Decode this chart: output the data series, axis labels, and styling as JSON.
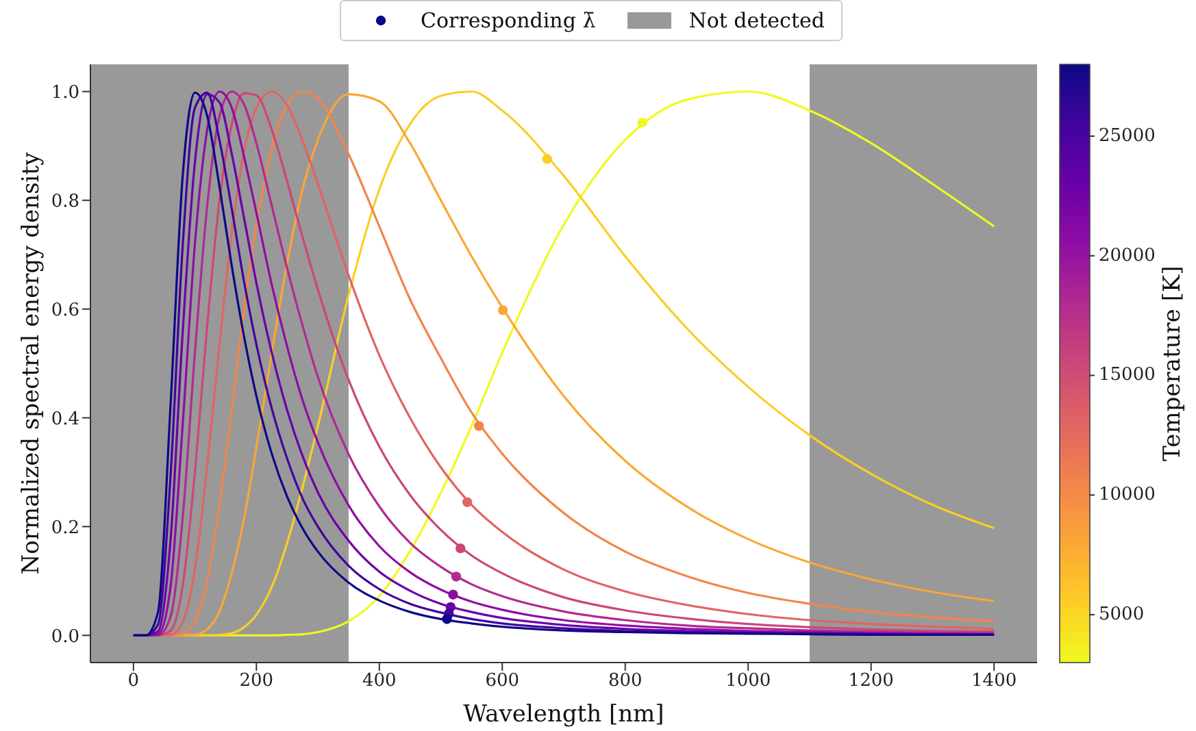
{
  "chart_data": {
    "type": "line",
    "xlabel": "Wavelength [nm]",
    "ylabel": "Normalized spectral energy density",
    "clabel": "Temperature [K]",
    "x": [
      0,
      20,
      40,
      60,
      80,
      100,
      120,
      140,
      160,
      180,
      200,
      225,
      250,
      275,
      300,
      350,
      400,
      450,
      500,
      550,
      600,
      700,
      800,
      900,
      1000,
      1100,
      1200,
      1300,
      1400
    ],
    "xlim": [
      -70,
      1470
    ],
    "xticks": [
      0,
      200,
      400,
      600,
      800,
      1000,
      1200,
      1400
    ],
    "ylim": [
      -0.05,
      1.05
    ],
    "yticks": [
      {
        "value": 0,
        "label": "0.0"
      },
      {
        "value": 0.2,
        "label": "0.2"
      },
      {
        "value": 0.4,
        "label": "0.4"
      },
      {
        "value": 0.6,
        "label": "0.6"
      },
      {
        "value": 0.8,
        "label": "0.8"
      },
      {
        "value": 1,
        "label": "1.0"
      }
    ],
    "clim": [
      3000,
      28000
    ],
    "cticks": [
      5000,
      10000,
      15000,
      20000,
      25000
    ],
    "legend": "top",
    "grid": false,
    "bands": [
      {
        "axis": "x",
        "from": -70,
        "to": 350,
        "label": "Not detected",
        "color": "#808080"
      },
      {
        "axis": "x",
        "from": 1100,
        "to": 1470,
        "color": "#808080"
      }
    ],
    "series": [
      {
        "color": "#f0f921",
        "values": [
          null,
          null,
          null,
          null,
          0,
          0,
          0,
          0,
          0,
          0,
          0,
          0,
          0.001,
          0.002,
          0.006,
          0.026,
          0.072,
          0.155,
          0.262,
          0.385,
          0.52,
          0.755,
          0.911,
          0.985,
          1.0,
          0.965,
          0.905,
          0.83,
          0.752
        ]
      },
      {
        "color": "#fcce25",
        "values": [
          null,
          null,
          0,
          0,
          0,
          0,
          0,
          0.001,
          0.004,
          0.015,
          0.038,
          0.089,
          0.17,
          0.272,
          0.385,
          0.625,
          0.82,
          0.94,
          0.992,
          1.0,
          0.965,
          0.845,
          0.697,
          0.565,
          0.457,
          0.368,
          0.297,
          0.24,
          0.197
        ]
      },
      {
        "color": "#fca636",
        "values": [
          0,
          0,
          0,
          0,
          0,
          0.001,
          0.011,
          0.044,
          0.115,
          0.215,
          0.346,
          0.52,
          0.684,
          0.82,
          0.911,
          0.995,
          0.982,
          0.905,
          0.8,
          0.697,
          0.603,
          0.44,
          0.321,
          0.237,
          0.177,
          0.134,
          0.103,
          0.08,
          0.063
        ]
      },
      {
        "color": "#f2844b",
        "values": [
          0,
          0,
          0,
          0,
          0.003,
          0.026,
          0.1,
          0.24,
          0.415,
          0.6,
          0.755,
          0.895,
          0.975,
          1.0,
          0.987,
          0.885,
          0.752,
          0.618,
          0.51,
          0.41,
          0.334,
          0.225,
          0.154,
          0.109,
          0.078,
          0.058,
          0.043,
          0.033,
          0.026
        ]
      },
      {
        "color": "#e16462",
        "values": [
          0,
          0,
          0,
          0.001,
          0.024,
          0.122,
          0.313,
          0.535,
          0.74,
          0.89,
          0.97,
          1.0,
          0.975,
          0.91,
          0.83,
          0.662,
          0.515,
          0.4,
          0.309,
          0.24,
          0.19,
          0.121,
          0.081,
          0.056,
          0.039,
          0.028,
          0.021,
          0.016,
          0.012
        ]
      },
      {
        "color": "#cc4778",
        "values": [
          0,
          0,
          0,
          0.008,
          0.09,
          0.3,
          0.57,
          0.8,
          0.94,
          0.997,
          0.993,
          0.93,
          0.835,
          0.733,
          0.636,
          0.47,
          0.347,
          0.258,
          0.194,
          0.147,
          0.114,
          0.07,
          0.046,
          0.031,
          0.021,
          0.015,
          0.011,
          0.008,
          0.007
        ]
      },
      {
        "color": "#b12a90",
        "values": [
          0,
          0,
          0,
          0.033,
          0.215,
          0.52,
          0.79,
          0.955,
          1.0,
          0.976,
          0.905,
          0.79,
          0.675,
          0.57,
          0.475,
          0.333,
          0.237,
          0.17,
          0.126,
          0.094,
          0.072,
          0.044,
          0.028,
          0.018,
          0.013,
          0.009,
          0.007,
          0.005,
          0.004
        ]
      },
      {
        "color": "#8f0da4",
        "values": [
          0,
          0,
          0.002,
          0.086,
          0.385,
          0.72,
          0.93,
          1.0,
          0.97,
          0.88,
          0.777,
          0.645,
          0.531,
          0.433,
          0.355,
          0.239,
          0.164,
          0.116,
          0.084,
          0.062,
          0.047,
          0.028,
          0.018,
          0.012,
          0.008,
          0.006,
          0.004,
          0.003,
          0.002
        ]
      },
      {
        "color": "#6a00a8",
        "values": [
          0,
          0,
          0.007,
          0.17,
          0.555,
          0.87,
          0.995,
          0.98,
          0.885,
          0.767,
          0.648,
          0.52,
          0.414,
          0.33,
          0.263,
          0.174,
          0.117,
          0.082,
          0.058,
          0.043,
          0.032,
          0.019,
          0.012,
          0.008,
          0.005,
          0.004,
          0.003,
          0.002,
          0.002
        ]
      },
      {
        "color": "#41049d",
        "values": [
          0,
          0,
          0.02,
          0.287,
          0.714,
          0.97,
          0.998,
          0.91,
          0.784,
          0.65,
          0.535,
          0.417,
          0.325,
          0.252,
          0.2,
          0.128,
          0.085,
          0.058,
          0.042,
          0.03,
          0.022,
          0.013,
          0.008,
          0.005,
          0.004,
          0.003,
          0.002,
          0.001,
          0.001
        ]
      },
      {
        "color": "#0d0887",
        "values": [
          0,
          0,
          0.043,
          0.416,
          0.843,
          0.998,
          0.955,
          0.825,
          0.679,
          0.549,
          0.44,
          0.334,
          0.255,
          0.197,
          0.154,
          0.097,
          0.064,
          0.043,
          0.03,
          0.022,
          0.016,
          0.009,
          0.006,
          0.004,
          0.003,
          0.002,
          0.001,
          0.001,
          0.001
        ]
      },
      {
        "type": "scatter",
        "name": "Corresponding λ̄",
        "color": "#0d0887",
        "x": [
          828,
          673,
          601,
          562,
          543,
          532,
          525,
          520,
          516,
          513,
          510
        ],
        "values": [
          0.943,
          0.876,
          0.598,
          0.385,
          0.245,
          0.16,
          0.108,
          0.075,
          0.052,
          0.04,
          0.03
        ],
        "colors": [
          "#f0f921",
          "#fcce25",
          "#fca636",
          "#f2844b",
          "#e16462",
          "#cc4778",
          "#b12a90",
          "#8f0da4",
          "#6a00a8",
          "#41049d",
          "#0d0887"
        ]
      }
    ]
  }
}
